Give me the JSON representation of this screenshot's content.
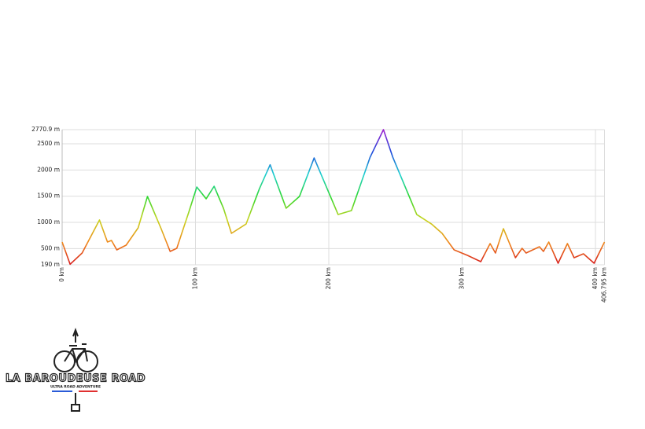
{
  "chart_data": {
    "type": "line",
    "x": [
      0,
      6,
      15,
      28,
      34,
      37,
      41,
      48,
      57,
      64,
      74,
      81,
      86,
      95,
      101,
      108,
      114,
      121,
      127,
      138,
      148,
      156,
      168,
      178,
      189,
      200,
      207,
      217,
      231,
      241,
      248,
      266,
      277,
      285,
      294,
      304,
      314,
      321,
      325,
      331,
      340,
      345,
      348,
      358,
      361,
      365,
      372,
      379,
      384,
      391,
      399,
      406.795
    ],
    "series": [
      {
        "values": [
          625,
          200,
          415,
          1045,
          625,
          655,
          475,
          565,
          895,
          1495,
          895,
          445,
          505,
          1195,
          1675,
          1450,
          1690,
          1270,
          790,
          970,
          1645,
          2100,
          1270,
          1495,
          2230,
          1570,
          1150,
          1225,
          2245,
          2770.9,
          2245,
          1150,
          970,
          790,
          475,
          370,
          250,
          595,
          415,
          880,
          325,
          505,
          415,
          535,
          445,
          625,
          220,
          595,
          325,
          400,
          220,
          625
        ]
      }
    ],
    "colorscale": [
      "#d7191c",
      "#f08a1c",
      "#c8d41e",
      "#2ed82e",
      "#1ed0d0",
      "#1e4adc",
      "#a020d0"
    ],
    "xlim": [
      0,
      406.795
    ],
    "xticks": [
      {
        "value": 0,
        "label": "0 km"
      },
      {
        "value": 100,
        "label": "100 km"
      },
      {
        "value": 200,
        "label": "200 km"
      },
      {
        "value": 300,
        "label": "300 km"
      },
      {
        "value": 400,
        "label": "400 km"
      },
      {
        "value": 406.795,
        "label": "406.795 km"
      }
    ],
    "ylim": [
      190,
      2770.9
    ],
    "yticks": [
      {
        "value": 190,
        "label": "190 m"
      },
      {
        "value": 500,
        "label": "500 m"
      },
      {
        "value": 1000,
        "label": "1000 m"
      },
      {
        "value": 1500,
        "label": "1500 m"
      },
      {
        "value": 2000,
        "label": "2000 m"
      },
      {
        "value": 2500,
        "label": "2500 m"
      },
      {
        "value": 2770.9,
        "label": "2770.9 m"
      }
    ],
    "grid": true
  },
  "logo": {
    "name": "LA BAROUDEUSE ROAD",
    "tagline": "ULTRA ROAD ADVENTURE"
  }
}
